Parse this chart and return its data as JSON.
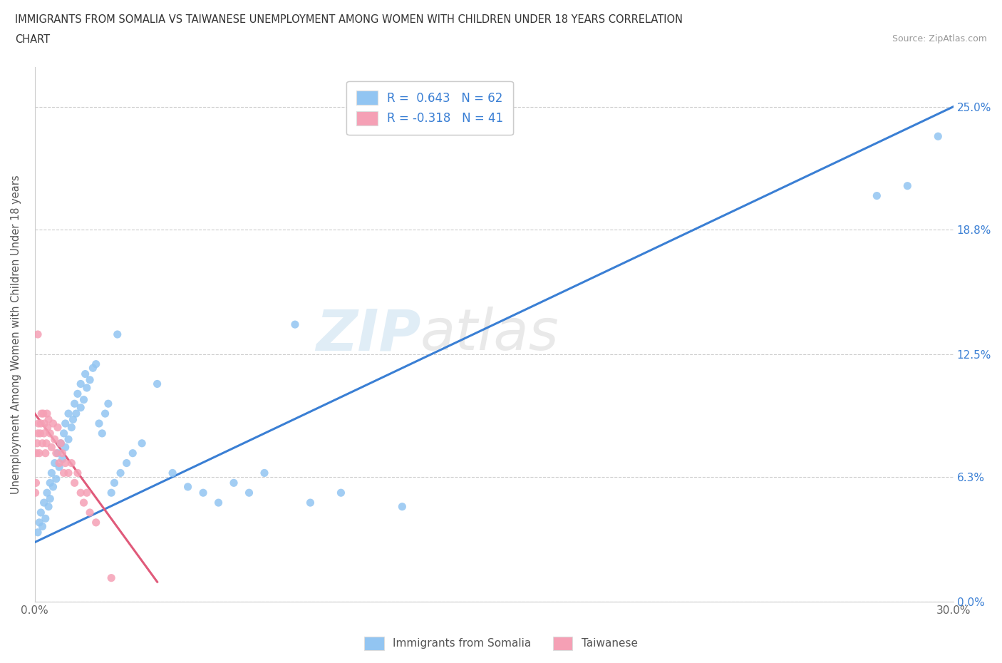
{
  "title_line1": "IMMIGRANTS FROM SOMALIA VS TAIWANESE UNEMPLOYMENT AMONG WOMEN WITH CHILDREN UNDER 18 YEARS CORRELATION",
  "title_line2": "CHART",
  "source": "Source: ZipAtlas.com",
  "ylabel": "Unemployment Among Women with Children Under 18 years",
  "ytick_labels_right": [
    "0.0%",
    "6.3%",
    "12.5%",
    "18.8%",
    "25.0%"
  ],
  "ytick_values": [
    0.0,
    6.3,
    12.5,
    18.8,
    25.0
  ],
  "xtick_values": [
    0.0,
    30.0
  ],
  "xtick_labels": [
    "0.0%",
    "30.0%"
  ],
  "xlim": [
    0.0,
    30.0
  ],
  "ylim": [
    0.0,
    27.0
  ],
  "R_somalia": 0.643,
  "N_somalia": 62,
  "R_taiwanese": -0.318,
  "N_taiwanese": 41,
  "color_somalia": "#92C5F2",
  "color_taiwanese": "#F5A0B5",
  "trendline_somalia_color": "#3A7FD4",
  "trendline_taiwanese_color": "#E05A7A",
  "watermark_zip": "ZIP",
  "watermark_atlas": "atlas",
  "legend_label_somalia": "Immigrants from Somalia",
  "legend_label_taiwanese": "Taiwanese",
  "somalia_x": [
    0.1,
    0.15,
    0.2,
    0.25,
    0.3,
    0.35,
    0.4,
    0.45,
    0.5,
    0.5,
    0.55,
    0.6,
    0.65,
    0.7,
    0.75,
    0.8,
    0.85,
    0.9,
    0.95,
    1.0,
    1.0,
    1.1,
    1.1,
    1.2,
    1.25,
    1.3,
    1.35,
    1.4,
    1.5,
    1.5,
    1.6,
    1.65,
    1.7,
    1.8,
    1.9,
    2.0,
    2.1,
    2.2,
    2.3,
    2.4,
    2.5,
    2.6,
    2.7,
    2.8,
    3.0,
    3.2,
    3.5,
    4.0,
    4.5,
    5.0,
    5.5,
    6.0,
    6.5,
    7.0,
    7.5,
    8.5,
    9.0,
    10.0,
    12.0,
    27.5,
    28.5,
    29.5
  ],
  "somalia_y": [
    3.5,
    4.0,
    4.5,
    3.8,
    5.0,
    4.2,
    5.5,
    4.8,
    6.0,
    5.2,
    6.5,
    5.8,
    7.0,
    6.2,
    7.5,
    6.8,
    8.0,
    7.2,
    8.5,
    7.8,
    9.0,
    8.2,
    9.5,
    8.8,
    9.2,
    10.0,
    9.5,
    10.5,
    9.8,
    11.0,
    10.2,
    11.5,
    10.8,
    11.2,
    11.8,
    12.0,
    9.0,
    8.5,
    9.5,
    10.0,
    5.5,
    6.0,
    13.5,
    6.5,
    7.0,
    7.5,
    8.0,
    11.0,
    6.5,
    5.8,
    5.5,
    5.0,
    6.0,
    5.5,
    6.5,
    14.0,
    5.0,
    5.5,
    4.8,
    20.5,
    21.0,
    23.5
  ],
  "taiwanese_x": [
    0.02,
    0.04,
    0.06,
    0.08,
    0.1,
    0.12,
    0.15,
    0.18,
    0.2,
    0.22,
    0.25,
    0.28,
    0.3,
    0.32,
    0.35,
    0.38,
    0.4,
    0.42,
    0.45,
    0.5,
    0.55,
    0.6,
    0.65,
    0.7,
    0.75,
    0.8,
    0.85,
    0.9,
    0.95,
    1.0,
    1.1,
    1.2,
    1.3,
    1.4,
    1.5,
    1.6,
    1.7,
    1.8,
    2.0,
    2.5,
    0.1
  ],
  "taiwanese_y": [
    5.5,
    6.0,
    7.5,
    8.0,
    8.5,
    9.0,
    7.5,
    8.5,
    9.0,
    9.5,
    8.0,
    9.5,
    8.5,
    9.0,
    7.5,
    8.0,
    9.5,
    8.8,
    9.2,
    8.5,
    7.8,
    9.0,
    8.2,
    7.5,
    8.8,
    7.0,
    8.0,
    7.5,
    6.5,
    7.0,
    6.5,
    7.0,
    6.0,
    6.5,
    5.5,
    5.0,
    5.5,
    4.5,
    4.0,
    1.2,
    13.5
  ],
  "trendline_somalia_x0": 0.0,
  "trendline_somalia_y0": 3.0,
  "trendline_somalia_x1": 30.0,
  "trendline_somalia_y1": 25.0,
  "trendline_taiwanese_x0": 0.0,
  "trendline_taiwanese_y0": 9.5,
  "trendline_taiwanese_x1": 4.0,
  "trendline_taiwanese_y1": 1.0
}
